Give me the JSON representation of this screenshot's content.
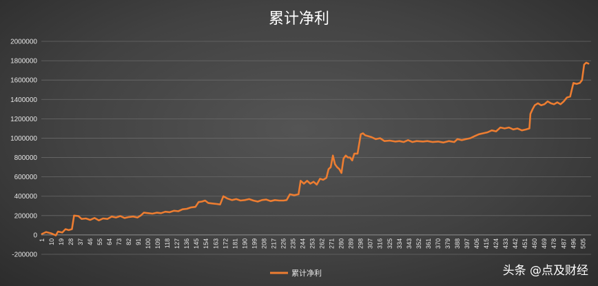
{
  "chart_data": {
    "type": "line",
    "title": "累计净利",
    "xlabel": "",
    "ylabel": "",
    "ylim": [
      -200000,
      2000000
    ],
    "yticks": [
      2000000,
      1800000,
      1600000,
      1400000,
      1200000,
      1000000,
      800000,
      600000,
      400000,
      200000,
      0,
      -200000
    ],
    "xlim": [
      1,
      512
    ],
    "xticks": [
      1,
      10,
      19,
      28,
      37,
      46,
      55,
      64,
      73,
      82,
      91,
      100,
      109,
      118,
      127,
      136,
      145,
      154,
      163,
      172,
      181,
      190,
      199,
      208,
      217,
      226,
      235,
      244,
      253,
      262,
      271,
      280,
      289,
      298,
      307,
      316,
      325,
      334,
      343,
      352,
      361,
      370,
      379,
      388,
      397,
      406,
      415,
      424,
      433,
      442,
      451,
      460,
      469,
      478,
      487,
      496,
      505
    ],
    "grid": true,
    "legend_position": "bottom",
    "series": [
      {
        "name": "累计净利",
        "color": "#ed7d31",
        "points": [
          [
            1,
            10000
          ],
          [
            5,
            30000
          ],
          [
            10,
            15000
          ],
          [
            14,
            -5000
          ],
          [
            16,
            35000
          ],
          [
            20,
            25000
          ],
          [
            23,
            60000
          ],
          [
            26,
            50000
          ],
          [
            29,
            60000
          ],
          [
            31,
            200000
          ],
          [
            35,
            195000
          ],
          [
            38,
            165000
          ],
          [
            42,
            170000
          ],
          [
            46,
            155000
          ],
          [
            50,
            175000
          ],
          [
            54,
            150000
          ],
          [
            58,
            170000
          ],
          [
            62,
            165000
          ],
          [
            66,
            190000
          ],
          [
            70,
            180000
          ],
          [
            74,
            195000
          ],
          [
            78,
            175000
          ],
          [
            82,
            185000
          ],
          [
            86,
            190000
          ],
          [
            90,
            180000
          ],
          [
            93,
            200000
          ],
          [
            96,
            230000
          ],
          [
            100,
            225000
          ],
          [
            104,
            220000
          ],
          [
            108,
            230000
          ],
          [
            112,
            225000
          ],
          [
            116,
            240000
          ],
          [
            120,
            235000
          ],
          [
            124,
            250000
          ],
          [
            128,
            245000
          ],
          [
            132,
            265000
          ],
          [
            136,
            270000
          ],
          [
            140,
            285000
          ],
          [
            144,
            290000
          ],
          [
            147,
            340000
          ],
          [
            150,
            345000
          ],
          [
            153,
            355000
          ],
          [
            156,
            330000
          ],
          [
            160,
            325000
          ],
          [
            164,
            320000
          ],
          [
            167,
            315000
          ],
          [
            170,
            400000
          ],
          [
            174,
            375000
          ],
          [
            178,
            360000
          ],
          [
            182,
            370000
          ],
          [
            186,
            355000
          ],
          [
            190,
            360000
          ],
          [
            194,
            370000
          ],
          [
            198,
            355000
          ],
          [
            202,
            345000
          ],
          [
            206,
            360000
          ],
          [
            210,
            365000
          ],
          [
            214,
            350000
          ],
          [
            218,
            360000
          ],
          [
            222,
            355000
          ],
          [
            226,
            355000
          ],
          [
            229,
            360000
          ],
          [
            232,
            420000
          ],
          [
            236,
            410000
          ],
          [
            240,
            420000
          ],
          [
            242,
            560000
          ],
          [
            245,
            530000
          ],
          [
            248,
            560000
          ],
          [
            251,
            530000
          ],
          [
            254,
            550000
          ],
          [
            257,
            520000
          ],
          [
            260,
            580000
          ],
          [
            263,
            570000
          ],
          [
            266,
            590000
          ],
          [
            268,
            680000
          ],
          [
            270,
            700000
          ],
          [
            272,
            820000
          ],
          [
            274,
            730000
          ],
          [
            276,
            700000
          ],
          [
            278,
            680000
          ],
          [
            280,
            640000
          ],
          [
            282,
            790000
          ],
          [
            284,
            820000
          ],
          [
            286,
            800000
          ],
          [
            288,
            800000
          ],
          [
            290,
            770000
          ],
          [
            292,
            840000
          ],
          [
            295,
            840000
          ],
          [
            298,
            1040000
          ],
          [
            300,
            1050000
          ],
          [
            302,
            1030000
          ],
          [
            305,
            1020000
          ],
          [
            308,
            1010000
          ],
          [
            312,
            990000
          ],
          [
            316,
            1000000
          ],
          [
            320,
            970000
          ],
          [
            325,
            975000
          ],
          [
            330,
            965000
          ],
          [
            334,
            970000
          ],
          [
            338,
            960000
          ],
          [
            342,
            980000
          ],
          [
            346,
            960000
          ],
          [
            350,
            970000
          ],
          [
            356,
            965000
          ],
          [
            360,
            970000
          ],
          [
            365,
            960000
          ],
          [
            370,
            965000
          ],
          [
            375,
            955000
          ],
          [
            380,
            970000
          ],
          [
            385,
            960000
          ],
          [
            388,
            990000
          ],
          [
            392,
            980000
          ],
          [
            396,
            990000
          ],
          [
            400,
            1000000
          ],
          [
            404,
            1020000
          ],
          [
            408,
            1040000
          ],
          [
            412,
            1050000
          ],
          [
            416,
            1060000
          ],
          [
            420,
            1080000
          ],
          [
            424,
            1070000
          ],
          [
            428,
            1110000
          ],
          [
            432,
            1100000
          ],
          [
            436,
            1110000
          ],
          [
            440,
            1090000
          ],
          [
            444,
            1100000
          ],
          [
            448,
            1080000
          ],
          [
            452,
            1090000
          ],
          [
            455,
            1100000
          ],
          [
            456,
            1250000
          ],
          [
            458,
            1300000
          ],
          [
            460,
            1340000
          ],
          [
            463,
            1360000
          ],
          [
            466,
            1340000
          ],
          [
            469,
            1350000
          ],
          [
            472,
            1380000
          ],
          [
            475,
            1360000
          ],
          [
            478,
            1350000
          ],
          [
            481,
            1370000
          ],
          [
            484,
            1350000
          ],
          [
            487,
            1380000
          ],
          [
            490,
            1420000
          ],
          [
            493,
            1430000
          ],
          [
            496,
            1570000
          ],
          [
            499,
            1560000
          ],
          [
            502,
            1570000
          ],
          [
            504,
            1600000
          ],
          [
            506,
            1760000
          ],
          [
            508,
            1780000
          ],
          [
            510,
            1770000
          ]
        ]
      }
    ]
  },
  "watermark": "头条 @点及财经"
}
